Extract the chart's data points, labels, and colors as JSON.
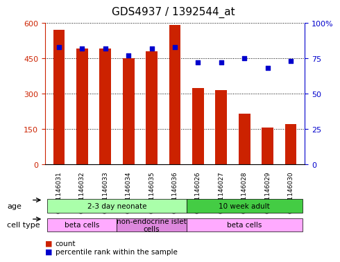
{
  "title": "GDS4937 / 1392544_at",
  "samples": [
    "GSM1146031",
    "GSM1146032",
    "GSM1146033",
    "GSM1146034",
    "GSM1146035",
    "GSM1146036",
    "GSM1146026",
    "GSM1146027",
    "GSM1146028",
    "GSM1146029",
    "GSM1146030"
  ],
  "counts": [
    570,
    490,
    490,
    450,
    480,
    590,
    325,
    315,
    215,
    155,
    170
  ],
  "percentiles": [
    83,
    82,
    82,
    77,
    82,
    83,
    72,
    72,
    75,
    68,
    73
  ],
  "bar_color": "#cc2200",
  "dot_color": "#0000cc",
  "ylim_left": [
    0,
    600
  ],
  "ylim_right": [
    0,
    100
  ],
  "yticks_left": [
    0,
    150,
    300,
    450,
    600
  ],
  "ytick_labels_left": [
    "0",
    "150",
    "300",
    "450",
    "600"
  ],
  "yticks_right": [
    0,
    25,
    50,
    75,
    100
  ],
  "ytick_labels_right": [
    "0",
    "25",
    "50",
    "75",
    "100%"
  ],
  "age_groups": [
    {
      "label": "2-3 day neonate",
      "start": 0,
      "end": 6,
      "color": "#aaffaa"
    },
    {
      "label": "10 week adult",
      "start": 6,
      "end": 11,
      "color": "#44cc44"
    }
  ],
  "cell_type_groups": [
    {
      "label": "beta cells",
      "start": 0,
      "end": 3,
      "color": "#ffaaff"
    },
    {
      "label": "non-endocrine islet\ncells",
      "start": 3,
      "end": 6,
      "color": "#dd88dd"
    },
    {
      "label": "beta cells",
      "start": 6,
      "end": 11,
      "color": "#ffaaff"
    }
  ],
  "legend_items": [
    {
      "color": "#cc2200",
      "label": "count"
    },
    {
      "color": "#0000cc",
      "label": "percentile rank within the sample"
    }
  ],
  "background_color": "#ffffff",
  "plot_bg": "#ffffff",
  "grid_color": "#000000",
  "tick_label_color_left": "#cc2200",
  "tick_label_color_right": "#0000cc"
}
